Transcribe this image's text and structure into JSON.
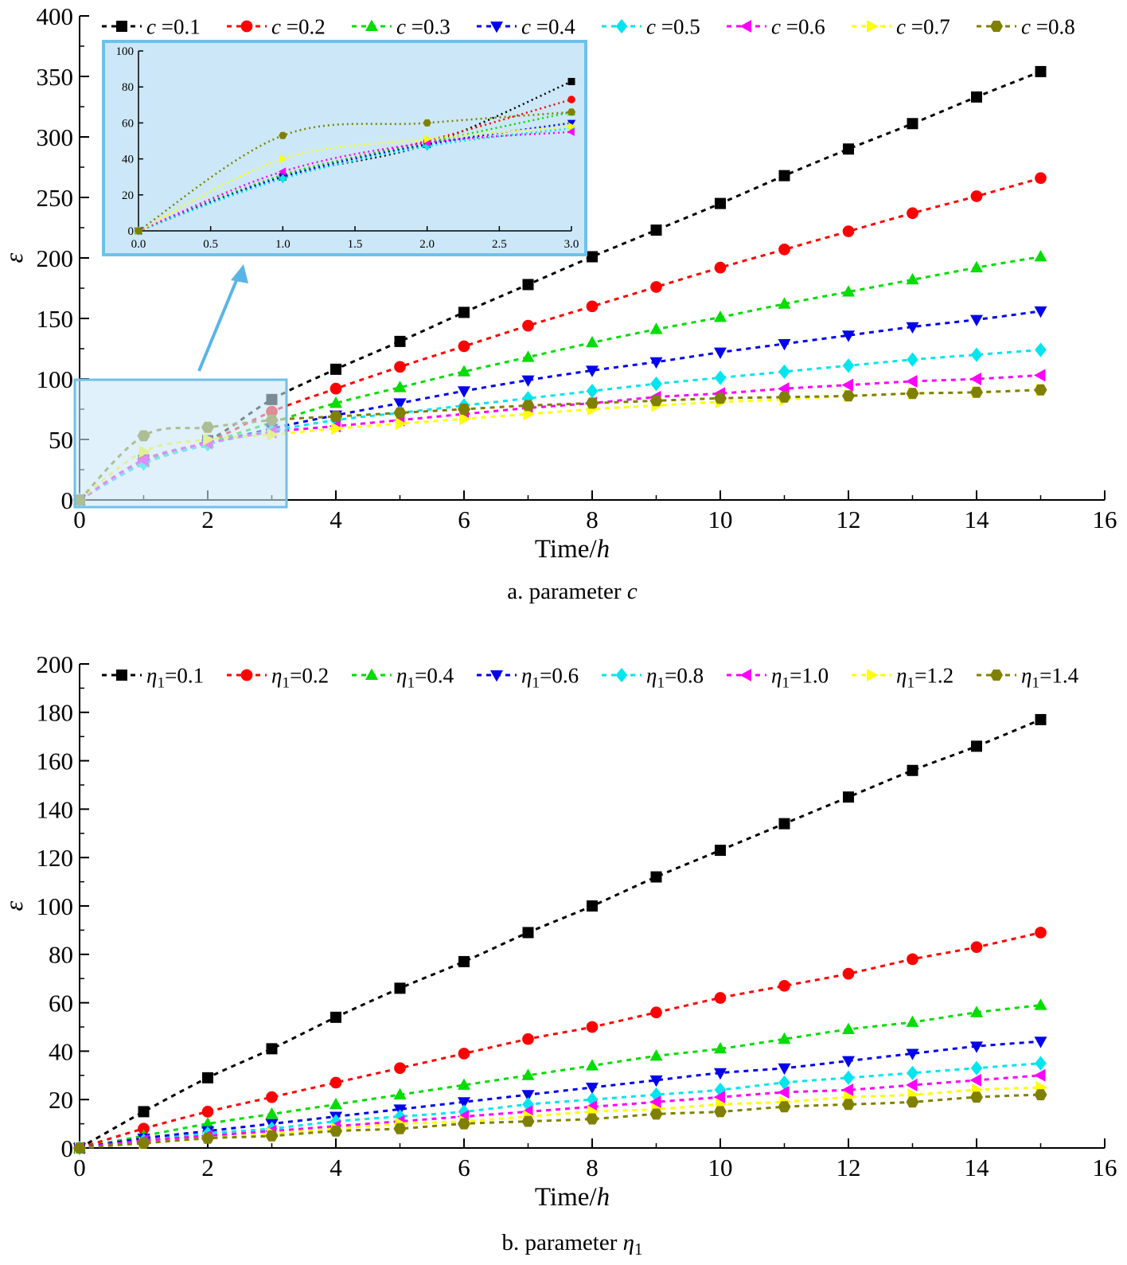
{
  "colors": {
    "series": [
      "#000000",
      "#ff0000",
      "#00dd00",
      "#0000ee",
      "#00e5ee",
      "#ff00ff",
      "#ffff00",
      "#808000"
    ],
    "inset_bg": "#cce8f8",
    "inset_border": "#6ec1ea",
    "arrow": "#5ab4e8"
  },
  "chart_data": [
    {
      "type": "scatter",
      "style": "markers with dashed fit lines",
      "caption_prefix": "a. parameter",
      "caption_symbol": "c",
      "xlabel": "Time/",
      "xlabel_var": "h",
      "ylabel": "ε",
      "xlim": [
        0,
        16
      ],
      "ylim": [
        0,
        400
      ],
      "xticks": [
        "0",
        "2",
        "4",
        "6",
        "8",
        "10",
        "12",
        "14",
        "16"
      ],
      "yticks": [
        "0",
        "50",
        "100",
        "150",
        "200",
        "250",
        "300",
        "350",
        "400"
      ],
      "legend_position": "top",
      "x": [
        0,
        1,
        2,
        3,
        4,
        5,
        6,
        7,
        8,
        9,
        10,
        11,
        12,
        13,
        14,
        15
      ],
      "series": [
        {
          "var": "c",
          "sub": "",
          "eq": " =0.1",
          "marker": "square",
          "values": [
            0,
            33,
            49,
            83,
            108,
            131,
            155,
            178,
            201,
            223,
            245,
            268,
            290,
            311,
            333,
            354
          ]
        },
        {
          "var": "c",
          "sub": "",
          "eq": " =0.2",
          "marker": "circle",
          "values": [
            0,
            32,
            48,
            73,
            92,
            110,
            127,
            144,
            160,
            176,
            192,
            207,
            222,
            237,
            251,
            266
          ]
        },
        {
          "var": "c",
          "sub": "",
          "eq": " =0.3",
          "marker": "triangle-up",
          "values": [
            0,
            31,
            47,
            64,
            80,
            93,
            106,
            118,
            130,
            141,
            151,
            162,
            172,
            182,
            192,
            201
          ]
        },
        {
          "var": "c",
          "sub": "",
          "eq": " =0.4",
          "marker": "triangle-down",
          "values": [
            0,
            30,
            46,
            59,
            70,
            80,
            90,
            99,
            107,
            114,
            122,
            129,
            136,
            143,
            149,
            156
          ]
        },
        {
          "var": "c",
          "sub": "",
          "eq": " =0.5",
          "marker": "diamond",
          "values": [
            0,
            30,
            46,
            57,
            66,
            72,
            78,
            84,
            90,
            96,
            101,
            106,
            111,
            116,
            120,
            124
          ]
        },
        {
          "var": "c",
          "sub": "",
          "eq": " =0.6",
          "marker": "triangle-left",
          "values": [
            0,
            33,
            47,
            56,
            61,
            66,
            71,
            76,
            80,
            85,
            88,
            92,
            95,
            98,
            100,
            103
          ]
        },
        {
          "var": "c",
          "sub": "",
          "eq": " =0.7",
          "marker": "triangle-right",
          "values": [
            0,
            40,
            50,
            54,
            59,
            63,
            67,
            71,
            75,
            78,
            81,
            83,
            86,
            88,
            89,
            91
          ]
        },
        {
          "var": "c",
          "sub": "",
          "eq": " =0.8",
          "marker": "hexagon",
          "values": [
            0,
            53,
            60,
            66,
            69,
            72,
            75,
            78,
            80,
            82,
            84,
            85,
            86,
            88,
            89,
            91
          ]
        }
      ],
      "inset": {
        "xlim": [
          0,
          3
        ],
        "ylim": [
          0,
          100
        ],
        "xticks": [
          "0.0",
          "0.5",
          "1.0",
          "1.5",
          "2.0",
          "2.5",
          "3.0"
        ],
        "yticks": [
          "0",
          "20",
          "40",
          "60",
          "80",
          "100"
        ],
        "x": [
          0,
          1,
          2,
          3
        ],
        "values": [
          [
            0,
            30,
            48,
            83
          ],
          [
            0,
            31,
            50,
            73
          ],
          [
            0,
            31,
            49,
            66
          ],
          [
            0,
            30,
            48,
            60
          ],
          [
            0,
            29,
            47,
            57
          ],
          [
            0,
            33,
            49,
            55
          ],
          [
            0,
            40,
            51,
            58
          ],
          [
            0,
            53,
            60,
            66
          ]
        ]
      }
    },
    {
      "type": "scatter",
      "style": "markers with dashed fit lines",
      "caption_prefix": "b. parameter",
      "caption_symbol": "η",
      "caption_sub": "1",
      "xlabel": "Time/",
      "xlabel_var": "h",
      "ylabel": "ε",
      "xlim": [
        0,
        16
      ],
      "ylim": [
        0,
        200
      ],
      "xticks": [
        "0",
        "2",
        "4",
        "6",
        "8",
        "10",
        "12",
        "14",
        "16"
      ],
      "yticks": [
        "0",
        "20",
        "40",
        "60",
        "80",
        "100",
        "120",
        "140",
        "160",
        "180",
        "200"
      ],
      "legend_position": "top",
      "x": [
        0,
        1,
        2,
        3,
        4,
        5,
        6,
        7,
        8,
        9,
        10,
        11,
        12,
        13,
        14,
        15
      ],
      "series": [
        {
          "var": "η",
          "sub": "1",
          "eq": "=0.1",
          "marker": "square",
          "values": [
            0,
            15,
            29,
            41,
            54,
            66,
            77,
            89,
            100,
            112,
            123,
            134,
            145,
            156,
            166,
            177
          ]
        },
        {
          "var": "η",
          "sub": "1",
          "eq": "=0.2",
          "marker": "circle",
          "values": [
            0,
            8,
            15,
            21,
            27,
            33,
            39,
            45,
            50,
            56,
            62,
            67,
            72,
            78,
            83,
            89
          ]
        },
        {
          "var": "η",
          "sub": "1",
          "eq": "=0.4",
          "marker": "triangle-up",
          "values": [
            0,
            5,
            10,
            14,
            18,
            22,
            26,
            30,
            34,
            38,
            41,
            45,
            49,
            52,
            56,
            59
          ]
        },
        {
          "var": "η",
          "sub": "1",
          "eq": "=0.6",
          "marker": "triangle-down",
          "values": [
            0,
            4,
            7,
            10,
            13,
            16,
            19,
            22,
            25,
            28,
            31,
            33,
            36,
            39,
            42,
            44
          ]
        },
        {
          "var": "η",
          "sub": "1",
          "eq": "=0.8",
          "marker": "diamond",
          "values": [
            0,
            3,
            6,
            8,
            11,
            13,
            15,
            18,
            20,
            22,
            24,
            27,
            29,
            31,
            33,
            35
          ]
        },
        {
          "var": "η",
          "sub": "1",
          "eq": "=1.0",
          "marker": "triangle-left",
          "values": [
            0,
            3,
            5,
            7,
            9,
            11,
            13,
            15,
            17,
            19,
            21,
            23,
            24,
            26,
            28,
            30
          ]
        },
        {
          "var": "η",
          "sub": "1",
          "eq": "=1.2",
          "marker": "triangle-right",
          "values": [
            0,
            2,
            4,
            6,
            8,
            10,
            11,
            13,
            15,
            16,
            18,
            19,
            21,
            22,
            24,
            25
          ]
        },
        {
          "var": "η",
          "sub": "1",
          "eq": "=1.4",
          "marker": "hexagon",
          "values": [
            0,
            2,
            4,
            5,
            7,
            8,
            10,
            11,
            12,
            14,
            15,
            17,
            18,
            19,
            21,
            22
          ]
        }
      ]
    }
  ]
}
